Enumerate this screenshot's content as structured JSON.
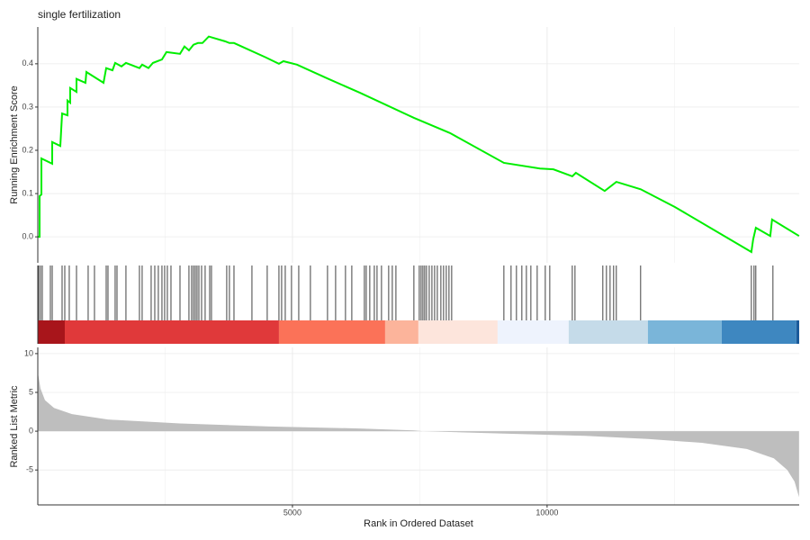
{
  "chart_data": {
    "type": "gsea",
    "title": "single fertilization",
    "xlabel": "Rank in Ordered Dataset",
    "xlim": [
      0,
      14950
    ],
    "xticks": [
      5000,
      10000
    ],
    "minor_xgrid": [
      2500,
      7500,
      12500
    ],
    "running_score": {
      "ylabel": "Running Enrichment Score",
      "color": "#00ee00",
      "ylim": [
        -0.06,
        0.485
      ],
      "yticks": [
        {
          "value": 0,
          "label": "0.0"
        },
        0.1,
        0.2,
        0.3,
        0.4
      ],
      "x": [
        0,
        35,
        35,
        71,
        71,
        283,
        283,
        442,
        477,
        583,
        583,
        636,
        636,
        760,
        760,
        936,
        954,
        1290,
        1343,
        1466,
        1519,
        1643,
        1731,
        1996,
        2049,
        2173,
        2261,
        2438,
        2527,
        2792,
        2880,
        2968,
        3057,
        3145,
        3233,
        3357,
        3675,
        3763,
        3852,
        4470,
        4735,
        4823,
        5088,
        5707,
        6325,
        7385,
        8092,
        9152,
        9859,
        10124,
        10495,
        10565,
        11131,
        11360,
        11837,
        12509,
        14011,
        14046,
        14099,
        14382,
        14417,
        14947
      ],
      "values": [
        0,
        0,
        0.094,
        0.098,
        0.181,
        0.169,
        0.219,
        0.21,
        0.285,
        0.281,
        0.315,
        0.31,
        0.344,
        0.335,
        0.365,
        0.356,
        0.381,
        0.356,
        0.39,
        0.385,
        0.402,
        0.394,
        0.402,
        0.39,
        0.398,
        0.39,
        0.402,
        0.41,
        0.427,
        0.423,
        0.44,
        0.431,
        0.444,
        0.448,
        0.448,
        0.463,
        0.452,
        0.448,
        0.448,
        0.415,
        0.4,
        0.406,
        0.398,
        0.365,
        0.333,
        0.275,
        0.24,
        0.171,
        0.158,
        0.156,
        0.14,
        0.148,
        0.106,
        0.127,
        0.11,
        0.069,
        -0.035,
        -0.006,
        0.021,
        0.002,
        0.04,
        0.002
      ]
    },
    "hits": [
      18,
      53,
      88,
      247,
      283,
      477,
      530,
      618,
      760,
      989,
      1113,
      1343,
      1378,
      1519,
      1555,
      1731,
      1996,
      2049,
      2226,
      2297,
      2367,
      2438,
      2491,
      2544,
      2615,
      2792,
      2968,
      3021,
      3057,
      3092,
      3127,
      3163,
      3216,
      3286,
      3375,
      3410,
      3710,
      3763,
      3852,
      4205,
      4505,
      4735,
      4788,
      4859,
      4982,
      5124,
      5353,
      5689,
      5848,
      6042,
      6166,
      6413,
      6449,
      6519,
      6608,
      6661,
      6749,
      6890,
      6961,
      7032,
      7385,
      7491,
      7527,
      7562,
      7597,
      7633,
      7686,
      7739,
      7792,
      7845,
      7915,
      7968,
      8021,
      8074,
      8127,
      9152,
      9293,
      9399,
      9505,
      9594,
      9682,
      9806,
      9965,
      10053,
      10495,
      10548,
      11095,
      11166,
      11237,
      11307,
      11360,
      11837,
      14011,
      14064,
      14099,
      14435
    ],
    "rank_bands": [
      {
        "from": 0,
        "to": 530,
        "color": "#a8151b"
      },
      {
        "from": 530,
        "to": 4735,
        "color": "#e0393a"
      },
      {
        "from": 4735,
        "to": 6820,
        "color": "#fb7258"
      },
      {
        "from": 6820,
        "to": 7473,
        "color": "#fcb49b"
      },
      {
        "from": 7473,
        "to": 9028,
        "color": "#fde5dc"
      },
      {
        "from": 9028,
        "to": 10424,
        "color": "#eef3fd"
      },
      {
        "from": 10424,
        "to": 11979,
        "color": "#c5dbe9"
      },
      {
        "from": 11979,
        "to": 13428,
        "color": "#7ab5d9"
      },
      {
        "from": 13428,
        "to": 14894,
        "color": "#3e87c0"
      },
      {
        "from": 14894,
        "to": 14950,
        "color": "#1a5a9a"
      }
    ],
    "ranked_metric": {
      "ylabel": "Ranked List Metric",
      "color": "#bebebe",
      "ylim": [
        -9.5,
        10.8
      ],
      "yticks": [
        -5,
        0,
        5,
        10
      ],
      "x": [
        0,
        53,
        141,
        318,
        671,
        1378,
        2792,
        4558,
        6325,
        7385,
        7562,
        9152,
        10742,
        11979,
        13039,
        13922,
        14452,
        14717,
        14859,
        14947
      ],
      "values": [
        7.6,
        5.5,
        4,
        3,
        2.2,
        1.5,
        1,
        0.6,
        0.35,
        0.1,
        0,
        -0.3,
        -0.6,
        -1,
        -1.5,
        -2.3,
        -3.5,
        -5,
        -6.5,
        -8.5
      ]
    }
  }
}
